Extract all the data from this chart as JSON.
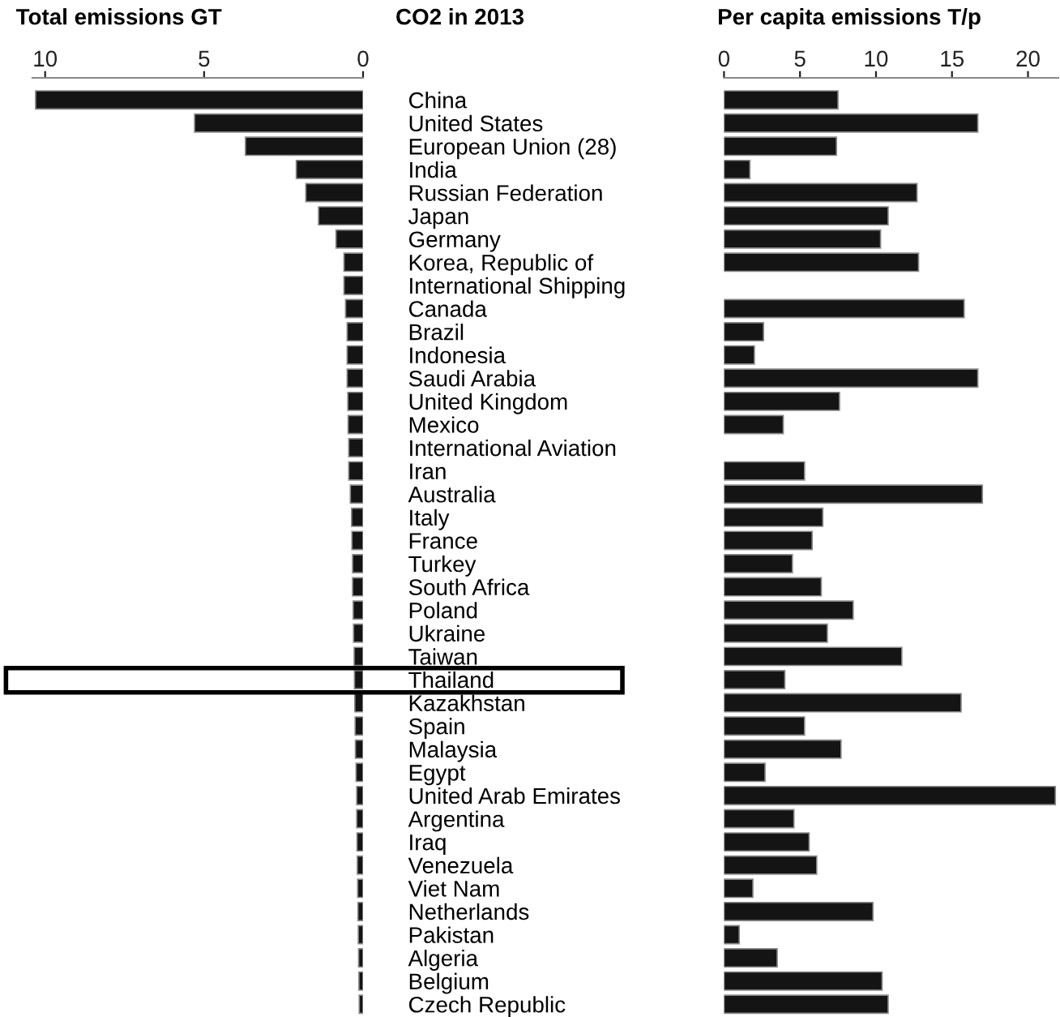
{
  "chart_data": [
    {
      "type": "bar",
      "orientation": "horizontal",
      "title": "Total emissions GT",
      "annotations": [
        "CO2 in 2013"
      ],
      "categories": [
        "China",
        "United States",
        "European Union (28)",
        "India",
        "Russian Federation",
        "Japan",
        "Germany",
        "Korea, Republic of",
        "International Shipping",
        "Canada",
        "Brazil",
        "Indonesia",
        "Saudi Arabia",
        "United Kingdom",
        "Mexico",
        "International Aviation",
        "Iran",
        "Australia",
        "Italy",
        "France",
        "Turkey",
        "South Africa",
        "Poland",
        "Ukraine",
        "Taiwan",
        "Thailand",
        "Kazakhstan",
        "Spain",
        "Malaysia",
        "Egypt",
        "United Arab Emirates",
        "Argentina",
        "Iraq",
        "Venezuela",
        "Viet Nam",
        "Netherlands",
        "Pakistan",
        "Algeria",
        "Belgium",
        "Czech Republic"
      ],
      "values": [
        10.3,
        5.3,
        3.7,
        2.1,
        1.8,
        1.4,
        0.85,
        0.6,
        0.6,
        0.55,
        0.5,
        0.5,
        0.5,
        0.48,
        0.47,
        0.45,
        0.45,
        0.4,
        0.36,
        0.35,
        0.33,
        0.33,
        0.31,
        0.3,
        0.28,
        0.27,
        0.26,
        0.25,
        0.24,
        0.22,
        0.2,
        0.2,
        0.19,
        0.18,
        0.17,
        0.16,
        0.15,
        0.14,
        0.13,
        0.12
      ],
      "color": "#141414",
      "xlim": [
        10.4,
        0
      ],
      "xticks": [
        10,
        5,
        0
      ],
      "grid": false,
      "legend": false
    },
    {
      "type": "bar",
      "orientation": "horizontal",
      "title": "Per capita emissions T/p",
      "categories": [
        null,
        null,
        null,
        null,
        null,
        null,
        null,
        null,
        null,
        null,
        null,
        null,
        null,
        null,
        null,
        null,
        null,
        null,
        null,
        null,
        null,
        null,
        null,
        null,
        null,
        null,
        null,
        null,
        null,
        null,
        null,
        null,
        null,
        null,
        null,
        null,
        null,
        null,
        null,
        null
      ],
      "values": [
        7.5,
        16.7,
        7.4,
        1.7,
        12.7,
        10.8,
        10.3,
        12.8,
        null,
        15.8,
        2.6,
        2.0,
        16.7,
        7.6,
        3.9,
        null,
        5.3,
        17.0,
        6.5,
        5.8,
        4.5,
        6.4,
        8.5,
        6.8,
        11.7,
        4.0,
        15.6,
        5.3,
        7.7,
        2.7,
        21.8,
        4.6,
        5.6,
        6.1,
        1.9,
        9.8,
        1.0,
        3.5,
        10.4,
        10.8
      ],
      "color": "#141414",
      "xlim": [
        0,
        22
      ],
      "xticks": [
        0,
        5,
        10,
        15,
        20
      ],
      "grid": false,
      "legend": false
    }
  ]
}
